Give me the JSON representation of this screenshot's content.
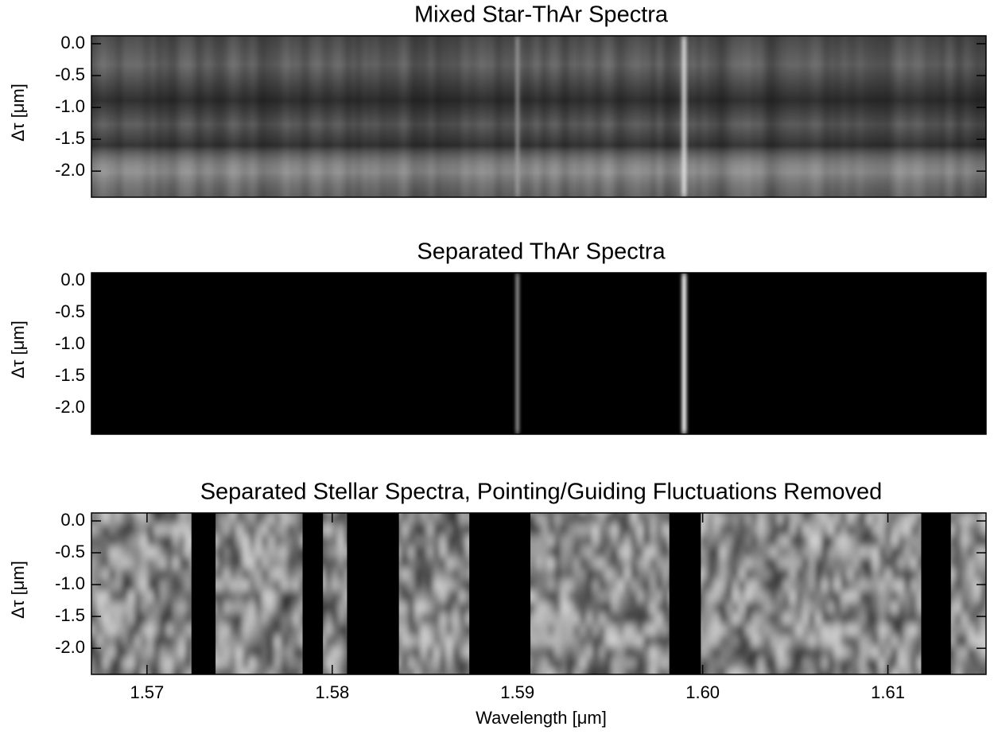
{
  "chart_data": [
    {
      "type": "heatmap",
      "title": "Mixed Star-ThAr Spectra",
      "ylabel": "Δτ [μm]",
      "xlim": [
        1.567,
        1.6153
      ],
      "ylim": [
        -2.41,
        0.125
      ],
      "yticks": [
        {
          "value": 0,
          "label": "0.0"
        },
        {
          "value": -0.5,
          "label": "-0.5"
        },
        {
          "value": -1,
          "label": "-1.0"
        },
        {
          "value": -1.5,
          "label": "-1.5"
        },
        {
          "value": -2,
          "label": "-2.0"
        }
      ],
      "lines": [
        1.59,
        1.599
      ]
    },
    {
      "type": "heatmap",
      "title": "Separated ThAr Spectra",
      "ylabel": "Δτ [μm]",
      "xlim": [
        1.567,
        1.6153
      ],
      "ylim": [
        -2.41,
        0.125
      ],
      "yticks": [
        {
          "value": 0,
          "label": "0.0"
        },
        {
          "value": -0.5,
          "label": "-0.5"
        },
        {
          "value": -1,
          "label": "-1.0"
        },
        {
          "value": -1.5,
          "label": "-1.5"
        },
        {
          "value": -2,
          "label": "-2.0"
        }
      ],
      "lines": [
        1.59,
        1.599
      ]
    },
    {
      "type": "heatmap",
      "title": "Separated Stellar Spectra, Pointing/Guiding Fluctuations Removed",
      "ylabel": "Δτ [μm]",
      "xlabel": "Wavelength [μm]",
      "xlim": [
        1.567,
        1.6153
      ],
      "ylim": [
        -2.41,
        0.125
      ],
      "xticks": [
        1.57,
        1.58,
        1.59,
        {
          "value": 1.6,
          "label": "1.60"
        },
        1.61
      ],
      "yticks": [
        {
          "value": 0,
          "label": "0.0"
        },
        {
          "value": -0.5,
          "label": "-0.5"
        },
        {
          "value": -1,
          "label": "-1.0"
        },
        {
          "value": -1.5,
          "label": "-1.5"
        },
        {
          "value": -2,
          "label": "-2.0"
        }
      ],
      "masked": [
        [
          1.5724,
          1.5737
        ],
        [
          1.5784,
          1.5795
        ],
        [
          1.5808,
          1.5836
        ],
        [
          1.5874,
          1.5907
        ],
        [
          1.5982,
          1.5999
        ],
        [
          1.6118,
          1.6134
        ]
      ]
    }
  ]
}
